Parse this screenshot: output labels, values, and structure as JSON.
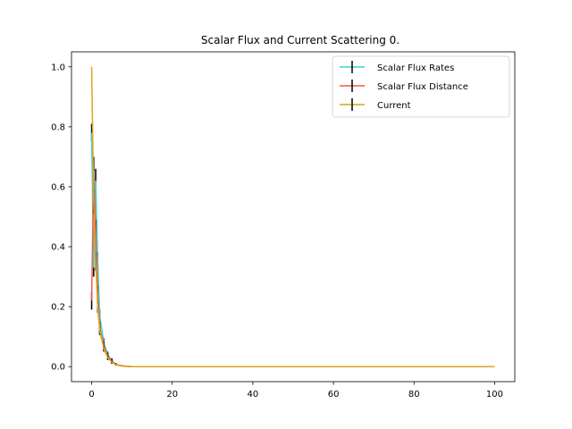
{
  "chart_data": {
    "type": "line",
    "title": "Scalar Flux and Current Scattering 0.",
    "xlabel": "",
    "ylabel": "",
    "xlim": [
      -5,
      105
    ],
    "ylim": [
      -0.05,
      1.05
    ],
    "xticks": [
      {
        "value": 0,
        "label": "0"
      },
      {
        "value": 20,
        "label": "20"
      },
      {
        "value": 40,
        "label": "40"
      },
      {
        "value": 60,
        "label": "60"
      },
      {
        "value": 80,
        "label": "80"
      },
      {
        "value": 100,
        "label": "100"
      }
    ],
    "yticks": [
      {
        "value": 0.0,
        "label": "0.0"
      },
      {
        "value": 0.2,
        "label": "0.2"
      },
      {
        "value": 0.4,
        "label": "0.4"
      },
      {
        "value": 0.6,
        "label": "0.6"
      },
      {
        "value": 0.8,
        "label": "0.8"
      },
      {
        "value": 1.0,
        "label": "1.0"
      }
    ],
    "grid": false,
    "legend": "top-right",
    "series": [
      {
        "name": "Scalar Flux Rates",
        "color": "#40d0d0",
        "x": [
          0,
          0.5,
          1,
          1.5,
          2,
          3,
          4,
          5,
          6,
          7,
          8,
          10,
          20,
          40,
          60,
          80,
          100
        ],
        "y": [
          0.78,
          0.33,
          0.62,
          0.35,
          0.17,
          0.08,
          0.04,
          0.02,
          0.008,
          0.004,
          0.002,
          0.0,
          0.0,
          0.0,
          0.0,
          0.0,
          0.0
        ],
        "err": [
          0.03,
          0.03,
          0.04,
          0.03,
          0.02,
          0.015,
          0.01,
          0.008,
          0.004,
          0.002,
          0.0,
          0.0,
          0.0,
          0.0,
          0.0,
          0.0,
          0.0
        ]
      },
      {
        "name": "Scalar Flux Distance",
        "color": "#f05a45",
        "x": [
          0,
          0.5,
          1,
          1.5,
          2,
          3,
          4,
          5,
          6,
          7,
          8,
          10,
          20,
          40,
          60,
          80,
          100
        ],
        "y": [
          0.22,
          0.65,
          0.45,
          0.24,
          0.13,
          0.07,
          0.035,
          0.018,
          0.008,
          0.004,
          0.002,
          0.0,
          0.0,
          0.0,
          0.0,
          0.0,
          0.0
        ],
        "err": [
          0.03,
          0.05,
          0.04,
          0.03,
          0.02,
          0.015,
          0.01,
          0.008,
          0.004,
          0.002,
          0.0,
          0.0,
          0.0,
          0.0,
          0.0,
          0.0,
          0.0
        ]
      },
      {
        "name": "Current",
        "color": "#daa520",
        "x": [
          0,
          0.5,
          1,
          1.5,
          2,
          3,
          4,
          5,
          6,
          7,
          8,
          10,
          20,
          40,
          60,
          80,
          100
        ],
        "y": [
          1.0,
          0.55,
          0.35,
          0.2,
          0.12,
          0.06,
          0.03,
          0.015,
          0.007,
          0.003,
          0.001,
          0.0,
          0.0,
          0.0,
          0.0,
          0.0,
          0.0
        ],
        "err": [
          0.0,
          0.04,
          0.03,
          0.02,
          0.015,
          0.01,
          0.008,
          0.005,
          0.003,
          0.001,
          0.0,
          0.0,
          0.0,
          0.0,
          0.0,
          0.0,
          0.0
        ]
      }
    ]
  }
}
